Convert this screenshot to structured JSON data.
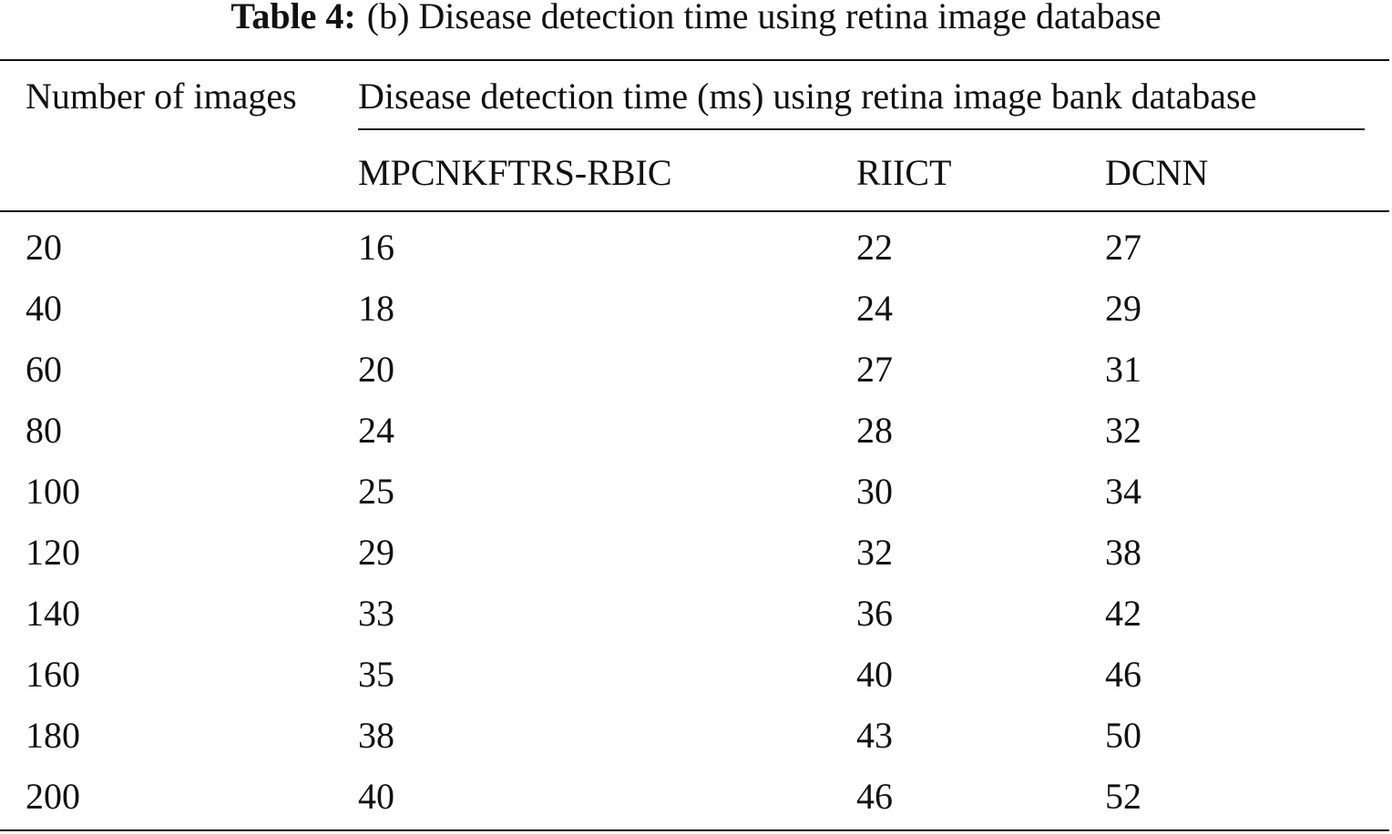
{
  "caption": {
    "label": "Table 4:",
    "text": "(b) Disease detection time using retina image database"
  },
  "table": {
    "header": {
      "first": "Number of images",
      "group": "Disease detection time (ms) using retina image bank database",
      "columns": [
        "MPCNKFTRS-RBIC",
        "RIICT",
        "DCNN"
      ]
    },
    "rows": [
      [
        20,
        16,
        22,
        27
      ],
      [
        40,
        18,
        24,
        29
      ],
      [
        60,
        20,
        27,
        31
      ],
      [
        80,
        24,
        28,
        32
      ],
      [
        100,
        25,
        30,
        34
      ],
      [
        120,
        29,
        32,
        38
      ],
      [
        140,
        33,
        36,
        42
      ],
      [
        160,
        35,
        40,
        46
      ],
      [
        180,
        38,
        43,
        50
      ],
      [
        200,
        40,
        46,
        52
      ]
    ]
  }
}
